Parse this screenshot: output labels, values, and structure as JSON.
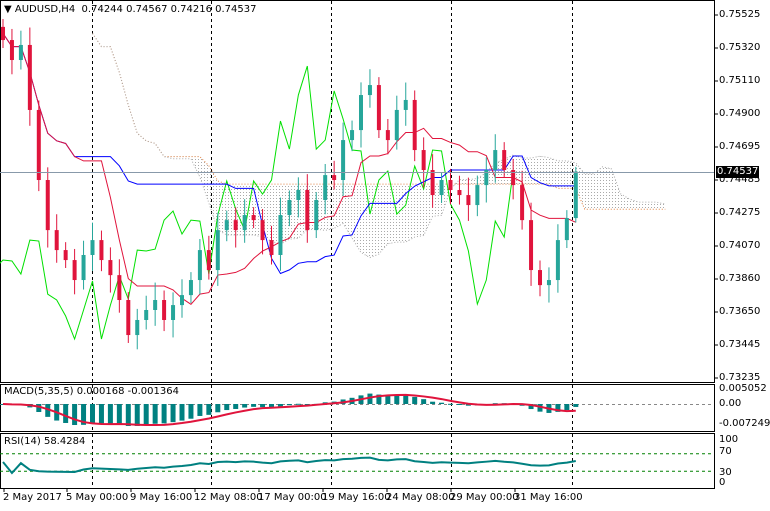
{
  "header": {
    "symbol": "AUDUSD,H4",
    "ohlc": "0.74244 0.74567 0.74216 0.74537",
    "menu_icon": "triangle-down-icon"
  },
  "price_axis": [
    "0.75525",
    "0.75320",
    "0.75110",
    "0.74900",
    "0.74695",
    "0.74485",
    "0.74275",
    "0.74070",
    "0.73860",
    "0.73650",
    "0.73445",
    "0.73235"
  ],
  "price_range": [
    0.73235,
    0.75525
  ],
  "current_price": "0.74537",
  "macd": {
    "label": "MACD(5,35,5) 0.000168 -0.001364",
    "axis": [
      "0.005052",
      "0.00",
      "-0.007249"
    ]
  },
  "rsi": {
    "label": "RSI(14) 58.4284",
    "axis": [
      "100",
      "70",
      "30",
      "0"
    ]
  },
  "time_axis": [
    "2 May 2017",
    "5 May 00:00",
    "9 May 16:00",
    "12 May 08:00",
    "17 May 00:00",
    "19 May 16:00",
    "24 May 08:00",
    "29 May 00:00",
    "31 May 16:00"
  ],
  "colors": {
    "bull": "#26a69a",
    "bear": "#e0143c",
    "tenkan": "#e0143c",
    "kijun": "#0000ff",
    "chikou": "#00e000",
    "cloud": "#aaaaaa",
    "cloud_b": "#e08040",
    "macd_hist": "#008080",
    "signal": "#e0143c",
    "rsi": "#008080",
    "levels": "#008000"
  },
  "last_candle": {
    "open": 0.74244,
    "high": 0.74567,
    "low": 0.74216,
    "close": 0.74537
  },
  "closes": [
    0.75367,
    0.75241,
    0.75336,
    0.74926,
    0.74484,
    0.74168,
    0.74042,
    0.73979,
    0.73853,
    0.74011,
    0.74105,
    0.73979,
    0.73884,
    0.73727,
    0.73506,
    0.73601,
    0.73664,
    0.73727,
    0.73601,
    0.73695,
    0.73758,
    0.73853,
    0.74042,
    0.73916,
    0.74168,
    0.74231,
    0.74168,
    0.74263,
    0.74231,
    0.74105,
    0.74011,
    0.74263,
    0.74358,
    0.74421,
    0.74168,
    0.74358,
    0.74515,
    0.74484,
    0.74736,
    0.74799,
    0.7502,
    0.75083,
    0.74799,
    0.74736,
    0.74926,
    0.74989,
    0.74673,
    0.74547,
    0.74389,
    0.74484,
    0.74421,
    0.74389,
    0.74326,
    0.74452,
    0.74547,
    0.74673,
    0.74547,
    0.74452,
    0.74231,
    0.73916,
    0.73821,
    0.73853,
    0.74105,
    0.74244,
    0.74537
  ]
}
